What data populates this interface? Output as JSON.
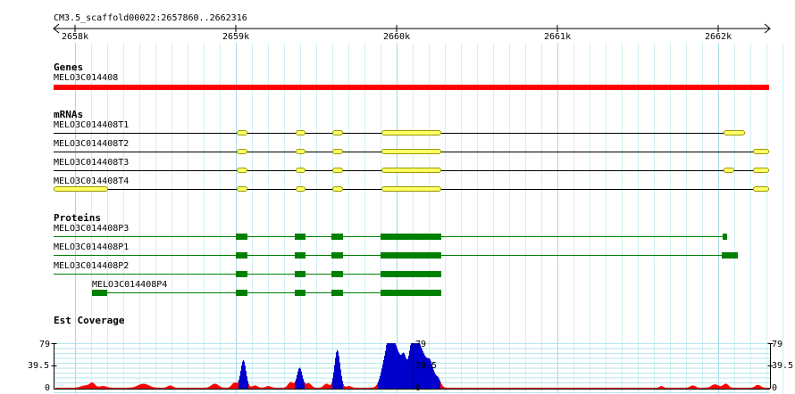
{
  "region": "CM3.5_scaffold00022:2657860..2662316",
  "ruler_ticks": [
    "2658k",
    "2659k",
    "2660k",
    "2661k",
    "2662k"
  ],
  "sections": {
    "genes": "Genes",
    "mrnas": "mRNAs",
    "proteins": "Proteins",
    "est": "Est Coverage"
  },
  "gene": {
    "name": "MELO3C014408",
    "color": "#ff0000"
  },
  "mrnas": [
    {
      "name": "MELO3C014408T1"
    },
    {
      "name": "MELO3C014408T2"
    },
    {
      "name": "MELO3C014408T3"
    },
    {
      "name": "MELO3C014408T4"
    }
  ],
  "proteins": [
    {
      "name": "MELO3C014408P3"
    },
    {
      "name": "MELO3C014408P1"
    },
    {
      "name": "MELO3C014408P2"
    },
    {
      "name": "MELO3C014408P4"
    }
  ],
  "coverage": {
    "max": "79",
    "mid": "39.5",
    "min": "0",
    "colors": {
      "low": "#ff0000",
      "high": "#0000cc"
    }
  }
}
